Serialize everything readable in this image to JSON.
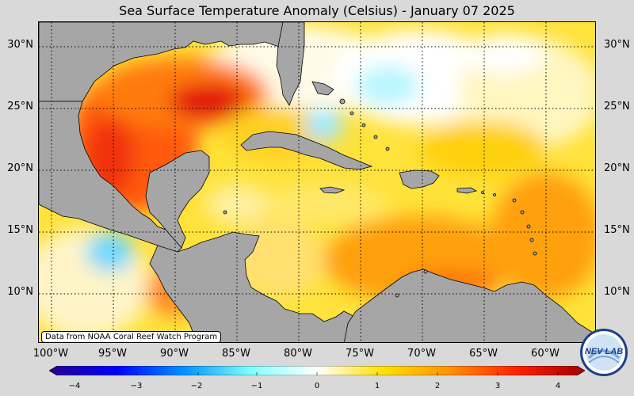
{
  "title": "Sea Surface Temperature Anomaly (Celsius) - January 07 2025",
  "credit": "Data from NOAA Coral Reef Watch Program",
  "logo_text": "NEV LAB",
  "lat_labels": [
    "30°N",
    "25°N",
    "20°N",
    "15°N",
    "10°N"
  ],
  "lon_labels": [
    "100°W",
    "95°W",
    "90°W",
    "85°W",
    "80°W",
    "75°W",
    "70°W",
    "65°W",
    "60°W"
  ],
  "colorbar": {
    "ticks": [
      "−4",
      "−3",
      "−2",
      "−1",
      "0",
      "1",
      "2",
      "3",
      "4"
    ],
    "min": -4,
    "max": 4,
    "colors": [
      "#2a0090",
      "#0000ff",
      "#0090ff",
      "#80ffff",
      "#ffffff",
      "#ffe000",
      "#ff9000",
      "#ff2000",
      "#a00000"
    ]
  },
  "colors": {
    "land": "#a6a6a6",
    "background": "#d9d9d9",
    "gridline": "#000000"
  }
}
